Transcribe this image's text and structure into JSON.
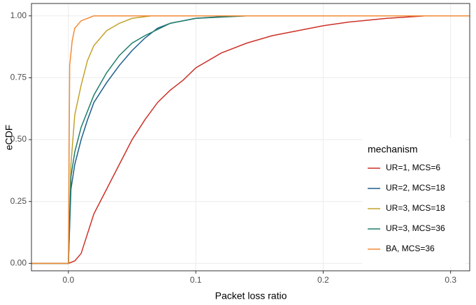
{
  "chart_data": {
    "type": "line",
    "x_label": "Packet loss ratio",
    "y_label": "eCDF",
    "legend_title": "mechanism",
    "legend_position": "bottom-right",
    "grid": true,
    "xlim": [
      -0.029,
      0.315
    ],
    "ylim": [
      -0.03,
      1.05
    ],
    "xticks": [
      {
        "value": 0,
        "label": "0.0"
      },
      0.1,
      0.2,
      0.3
    ],
    "yticks": [
      {
        "value": 0,
        "label": "0.00"
      },
      {
        "value": 0.25,
        "label": "0.25"
      },
      {
        "value": 0.5,
        "label": "0.50"
      },
      {
        "value": 0.75,
        "label": "0.75"
      },
      {
        "value": 1,
        "label": "1.00"
      }
    ],
    "series": [
      {
        "name": "UR=1, MCS=6",
        "color": "#cc3128",
        "x": [
          -0.029,
          0,
          0.005,
          0.01,
          0.015,
          0.02,
          0.03,
          0.04,
          0.05,
          0.06,
          0.07,
          0.08,
          0.09,
          0.1,
          0.12,
          0.14,
          0.16,
          0.18,
          0.2,
          0.22,
          0.25,
          0.28,
          0.315
        ],
        "values": [
          0,
          0,
          0.01,
          0.04,
          0.12,
          0.2,
          0.3,
          0.4,
          0.5,
          0.58,
          0.65,
          0.7,
          0.74,
          0.79,
          0.85,
          0.89,
          0.92,
          0.94,
          0.96,
          0.975,
          0.99,
          1.0,
          1.0
        ]
      },
      {
        "name": "UR=2, MCS=18",
        "color": "#1b5e8c",
        "x": [
          -0.029,
          0,
          0.002,
          0.005,
          0.01,
          0.015,
          0.02,
          0.03,
          0.04,
          0.05,
          0.06,
          0.07,
          0.08,
          0.1,
          0.13,
          0.315
        ],
        "values": [
          0,
          0,
          0.3,
          0.4,
          0.5,
          0.58,
          0.65,
          0.73,
          0.8,
          0.86,
          0.91,
          0.95,
          0.97,
          0.99,
          1.0,
          1.0
        ]
      },
      {
        "name": "UR=3, MCS=18",
        "color": "#c4a22a",
        "x": [
          -0.029,
          0,
          0.002,
          0.005,
          0.01,
          0.015,
          0.02,
          0.03,
          0.04,
          0.05,
          0.065,
          0.315
        ],
        "values": [
          0,
          0,
          0.4,
          0.6,
          0.72,
          0.82,
          0.88,
          0.94,
          0.97,
          0.99,
          1.0,
          1.0
        ]
      },
      {
        "name": "UR=3, MCS=36",
        "color": "#1f7d6a",
        "x": [
          -0.029,
          0,
          0.002,
          0.005,
          0.01,
          0.02,
          0.03,
          0.04,
          0.05,
          0.06,
          0.08,
          0.1,
          0.14,
          0.315
        ],
        "values": [
          0,
          0,
          0.35,
          0.45,
          0.55,
          0.68,
          0.77,
          0.84,
          0.89,
          0.92,
          0.97,
          0.99,
          1.0,
          1.0
        ]
      },
      {
        "name": "BA, MCS=36",
        "color": "#f28a35",
        "x": [
          -0.029,
          0,
          0.001,
          0.003,
          0.005,
          0.01,
          0.02,
          0.315
        ],
        "values": [
          0,
          0,
          0.8,
          0.9,
          0.95,
          0.98,
          1.0,
          1.0
        ]
      }
    ]
  }
}
